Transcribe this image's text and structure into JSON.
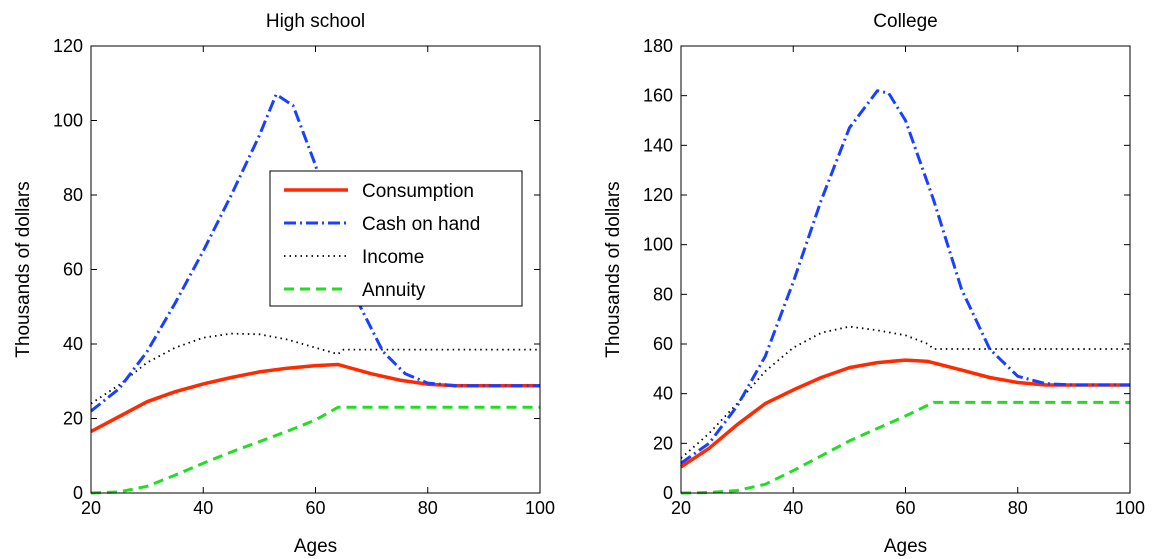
{
  "chart_data": [
    {
      "type": "line",
      "title": "High school",
      "xlabel": "Ages",
      "ylabel": "Thousands of dollars",
      "xlim": [
        20,
        100
      ],
      "ylim": [
        0,
        120
      ],
      "xticks": [
        20,
        40,
        60,
        80,
        100
      ],
      "yticks": [
        0,
        20,
        40,
        60,
        80,
        100,
        120
      ],
      "legend": {
        "placement": "center-right",
        "entries": [
          "Consumption",
          "Cash on hand",
          "Income",
          "Annuity"
        ]
      },
      "series": [
        {
          "name": "Consumption",
          "color": "#ff2a00",
          "style": "solid",
          "x": [
            20,
            25,
            30,
            35,
            40,
            45,
            50,
            55,
            60,
            64,
            70,
            75,
            80,
            85,
            90,
            95,
            100
          ],
          "y": [
            16.5,
            20.5,
            24.5,
            27.2,
            29.3,
            31,
            32.5,
            33.5,
            34.2,
            34.5,
            32,
            30.3,
            29.2,
            28.8,
            28.8,
            28.8,
            28.8
          ]
        },
        {
          "name": "Cash on hand",
          "color": "#1a40ff",
          "style": "dashdot",
          "x": [
            20,
            25,
            30,
            35,
            40,
            45,
            50,
            53,
            56,
            60,
            64,
            68,
            72,
            76,
            80,
            85,
            90,
            95,
            100
          ],
          "y": [
            22,
            28,
            38,
            51,
            65,
            80,
            96,
            107,
            104,
            88,
            68,
            50,
            38,
            32,
            29.5,
            28.8,
            28.8,
            28.8,
            28.8
          ]
        },
        {
          "name": "Income",
          "color": "#000000",
          "style": "dotted",
          "x": [
            20,
            25,
            30,
            35,
            40,
            45,
            50,
            55,
            60,
            64,
            65,
            70,
            80,
            90,
            100
          ],
          "y": [
            24,
            29,
            35,
            39,
            41.7,
            42.8,
            42.6,
            41.2,
            39,
            37.3,
            38.5,
            38.5,
            38.5,
            38.5,
            38.5
          ]
        },
        {
          "name": "Annuity",
          "color": "#22dd22",
          "style": "dashed",
          "x": [
            20,
            25,
            30,
            35,
            40,
            45,
            50,
            55,
            60,
            64,
            70,
            80,
            90,
            100
          ],
          "y": [
            0,
            0.3,
            1.8,
            4.8,
            8,
            11,
            13.8,
            16.6,
            19.6,
            23,
            23,
            23,
            23,
            23
          ]
        }
      ]
    },
    {
      "type": "line",
      "title": "College",
      "xlabel": "Ages",
      "ylabel": "Thousands of dollars",
      "xlim": [
        20,
        100
      ],
      "ylim": [
        0,
        180
      ],
      "xticks": [
        20,
        40,
        60,
        80,
        100
      ],
      "yticks": [
        0,
        20,
        40,
        60,
        80,
        100,
        120,
        140,
        160,
        180
      ],
      "series": [
        {
          "name": "Consumption",
          "color": "#ff2a00",
          "style": "solid",
          "x": [
            20,
            25,
            30,
            35,
            40,
            45,
            50,
            55,
            60,
            64,
            70,
            75,
            80,
            85,
            90,
            95,
            100
          ],
          "y": [
            10.5,
            18,
            27.5,
            36,
            41.5,
            46.5,
            50.5,
            52.5,
            53.5,
            53,
            49.5,
            46.5,
            44.5,
            43.5,
            43.5,
            43.5,
            43.5
          ]
        },
        {
          "name": "Cash on hand",
          "color": "#1a40ff",
          "style": "dashdot",
          "x": [
            20,
            25,
            30,
            35,
            40,
            45,
            50,
            55,
            57,
            60,
            65,
            70,
            75,
            80,
            85,
            90,
            95,
            100
          ],
          "y": [
            12,
            20,
            35,
            55,
            85,
            118,
            147,
            162,
            161,
            150,
            118,
            82,
            58,
            47,
            44,
            43.5,
            43.5,
            43.5
          ]
        },
        {
          "name": "Income",
          "color": "#000000",
          "style": "dotted",
          "x": [
            20,
            25,
            30,
            35,
            40,
            45,
            50,
            55,
            60,
            64,
            65,
            70,
            80,
            90,
            100
          ],
          "y": [
            14,
            24,
            36,
            49,
            58.5,
            64.5,
            67,
            65.5,
            63.5,
            60,
            58,
            58,
            58,
            58,
            58
          ]
        },
        {
          "name": "Annuity",
          "color": "#22dd22",
          "style": "dashed",
          "x": [
            20,
            25,
            30,
            35,
            40,
            45,
            50,
            55,
            60,
            65,
            70,
            80,
            90,
            100
          ],
          "y": [
            0,
            0.2,
            1,
            3.5,
            9,
            15,
            21,
            26,
            31,
            36.5,
            36.5,
            36.5,
            36.5,
            36.5
          ]
        }
      ]
    }
  ]
}
